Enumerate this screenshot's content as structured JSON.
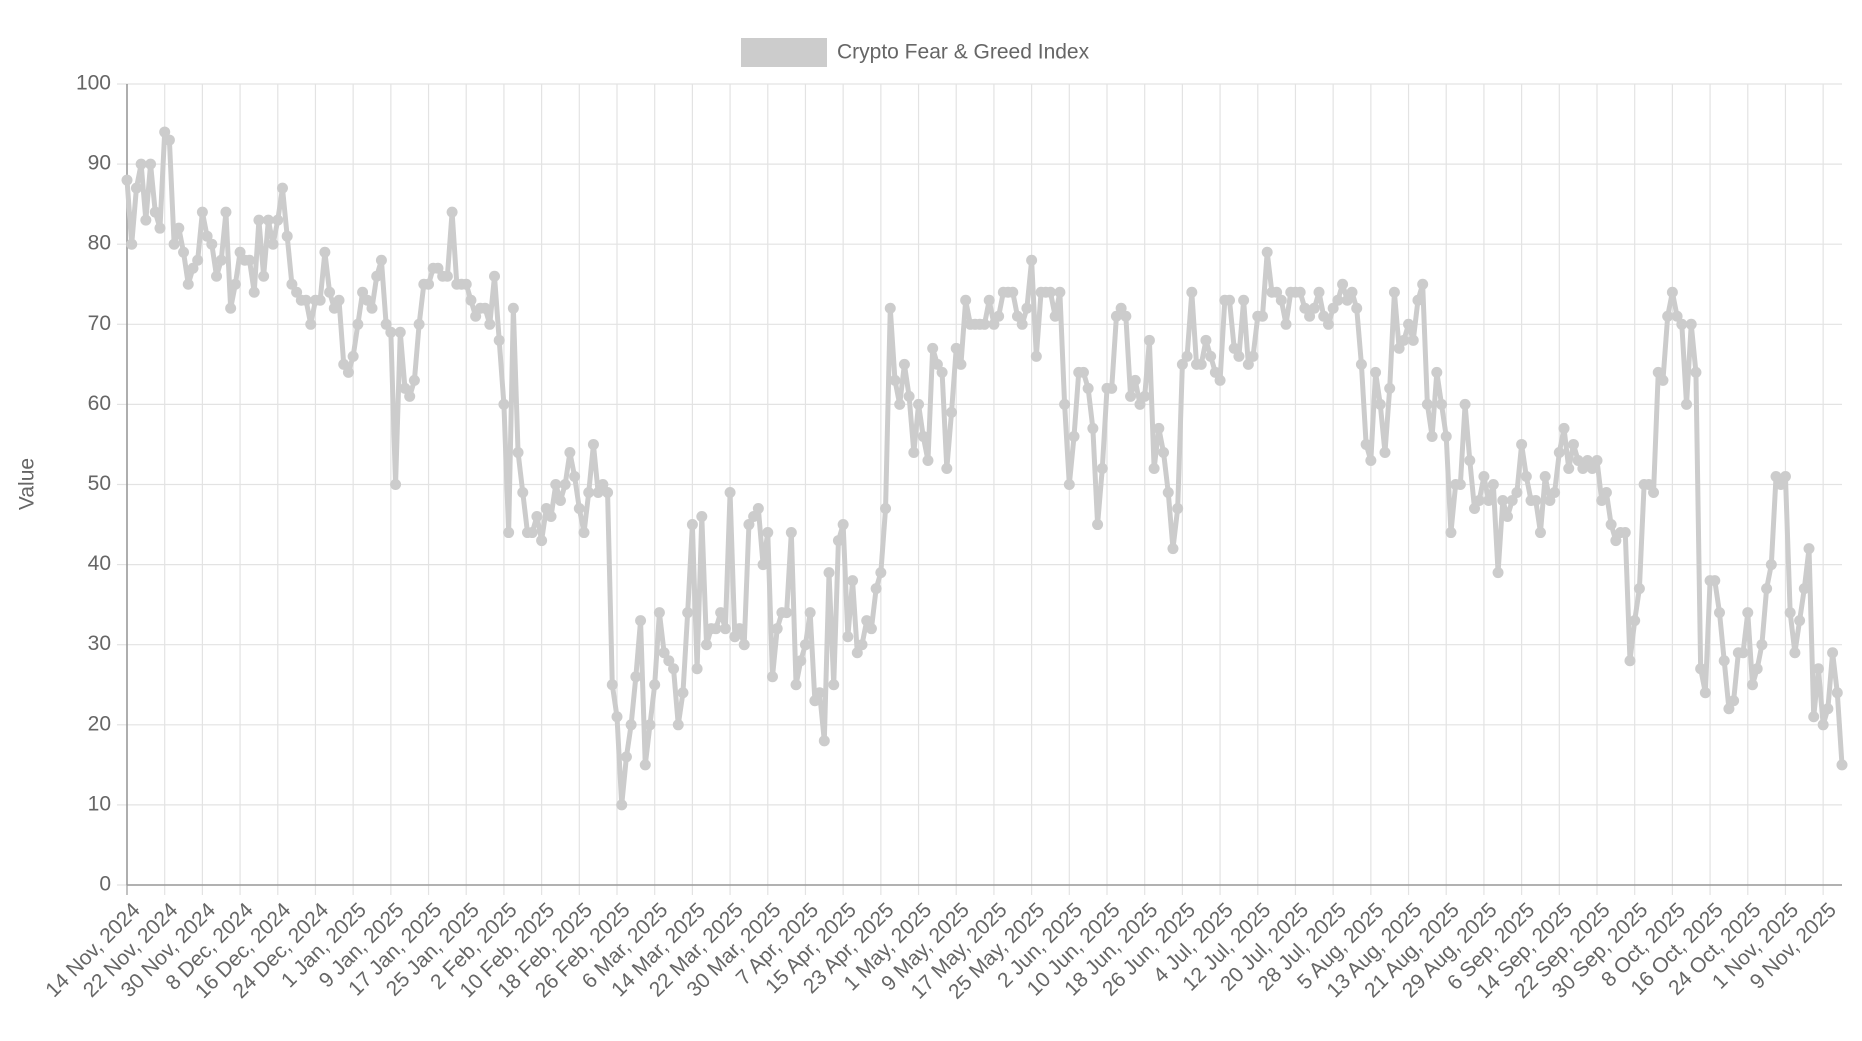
{
  "chart_data": {
    "type": "line",
    "y_label": "Value",
    "legend": "top",
    "grid": true,
    "ylim": [
      0,
      100
    ],
    "yticks": [
      0,
      10,
      20,
      30,
      40,
      50,
      60,
      70,
      80,
      90,
      100
    ],
    "categories": [
      "14 Nov, 2024",
      null,
      null,
      null,
      null,
      null,
      null,
      null,
      "22 Nov, 2024",
      null,
      null,
      null,
      null,
      null,
      null,
      null,
      "30 Nov, 2024",
      null,
      null,
      null,
      null,
      null,
      null,
      null,
      "8 Dec, 2024",
      null,
      null,
      null,
      null,
      null,
      null,
      null,
      "16 Dec, 2024",
      null,
      null,
      null,
      null,
      null,
      null,
      null,
      "24 Dec, 2024",
      null,
      null,
      null,
      null,
      null,
      null,
      null,
      "1 Jan, 2025",
      null,
      null,
      null,
      null,
      null,
      null,
      null,
      "9 Jan, 2025",
      null,
      null,
      null,
      null,
      null,
      null,
      null,
      "17 Jan, 2025",
      null,
      null,
      null,
      null,
      null,
      null,
      null,
      "25 Jan, 2025",
      null,
      null,
      null,
      null,
      null,
      null,
      null,
      "2 Feb, 2025",
      null,
      null,
      null,
      null,
      null,
      null,
      null,
      "10 Feb, 2025",
      null,
      null,
      null,
      null,
      null,
      null,
      null,
      "18 Feb, 2025",
      null,
      null,
      null,
      null,
      null,
      null,
      null,
      "26 Feb, 2025",
      null,
      null,
      null,
      null,
      null,
      null,
      null,
      "6 Mar, 2025",
      null,
      null,
      null,
      null,
      null,
      null,
      null,
      "14 Mar, 2025",
      null,
      null,
      null,
      null,
      null,
      null,
      null,
      "22 Mar, 2025",
      null,
      null,
      null,
      null,
      null,
      null,
      null,
      "30 Mar, 2025",
      null,
      null,
      null,
      null,
      null,
      null,
      null,
      "7 Apr, 2025",
      null,
      null,
      null,
      null,
      null,
      null,
      null,
      "15 Apr, 2025",
      null,
      null,
      null,
      null,
      null,
      null,
      null,
      "23 Apr, 2025",
      null,
      null,
      null,
      null,
      null,
      null,
      null,
      "1 May, 2025",
      null,
      null,
      null,
      null,
      null,
      null,
      null,
      "9 May, 2025",
      null,
      null,
      null,
      null,
      null,
      null,
      null,
      "17 May, 2025",
      null,
      null,
      null,
      null,
      null,
      null,
      null,
      "25 May, 2025",
      null,
      null,
      null,
      null,
      null,
      null,
      null,
      "2 Jun, 2025",
      null,
      null,
      null,
      null,
      null,
      null,
      null,
      "10 Jun, 2025",
      null,
      null,
      null,
      null,
      null,
      null,
      null,
      "18 Jun, 2025",
      null,
      null,
      null,
      null,
      null,
      null,
      null,
      "26 Jun, 2025",
      null,
      null,
      null,
      null,
      null,
      null,
      null,
      "4 Jul, 2025",
      null,
      null,
      null,
      null,
      null,
      null,
      null,
      "12 Jul, 2025",
      null,
      null,
      null,
      null,
      null,
      null,
      null,
      "20 Jul, 2025",
      null,
      null,
      null,
      null,
      null,
      null,
      null,
      "28 Jul, 2025",
      null,
      null,
      null,
      null,
      null,
      null,
      null,
      "5 Aug, 2025",
      null,
      null,
      null,
      null,
      null,
      null,
      null,
      "13 Aug, 2025",
      null,
      null,
      null,
      null,
      null,
      null,
      null,
      "21 Aug, 2025",
      null,
      null,
      null,
      null,
      null,
      null,
      null,
      "29 Aug, 2025",
      null,
      null,
      null,
      null,
      null,
      null,
      null,
      "6 Sep, 2025",
      null,
      null,
      null,
      null,
      null,
      null,
      null,
      "14 Sep, 2025",
      null,
      null,
      null,
      null,
      null,
      null,
      null,
      "22 Sep, 2025",
      null,
      null,
      null,
      null,
      null,
      null,
      null,
      "30 Sep, 2025",
      null,
      null,
      null,
      null,
      null,
      null,
      null,
      "8 Oct, 2025",
      null,
      null,
      null,
      null,
      null,
      null,
      null,
      "16 Oct, 2025",
      null,
      null,
      null,
      null,
      null,
      null,
      null,
      "24 Oct, 2025",
      null,
      null,
      null,
      null,
      null,
      null,
      null,
      "1 Nov, 2025",
      null,
      null,
      null,
      null,
      null,
      null,
      null,
      "9 Nov, 2025",
      null,
      null,
      null,
      null
    ],
    "series": [
      {
        "name": "Crypto Fear & Greed Index",
        "color": "#cccccc",
        "values": [
          88,
          80,
          87,
          90,
          83,
          90,
          84,
          82,
          94,
          93,
          80,
          82,
          79,
          75,
          77,
          78,
          84,
          81,
          80,
          76,
          78,
          84,
          72,
          75,
          79,
          78,
          78,
          74,
          83,
          76,
          83,
          80,
          83,
          87,
          81,
          75,
          74,
          73,
          73,
          70,
          73,
          73,
          79,
          74,
          72,
          73,
          65,
          64,
          66,
          70,
          74,
          73,
          72,
          76,
          78,
          70,
          69,
          50,
          69,
          62,
          61,
          63,
          70,
          75,
          75,
          77,
          77,
          76,
          76,
          84,
          75,
          75,
          75,
          73,
          71,
          72,
          72,
          70,
          76,
          68,
          60,
          44,
          72,
          54,
          49,
          44,
          44,
          46,
          43,
          47,
          46,
          50,
          48,
          50,
          54,
          51,
          47,
          44,
          49,
          55,
          49,
          50,
          49,
          25,
          21,
          10,
          16,
          20,
          26,
          33,
          15,
          20,
          25,
          34,
          29,
          28,
          27,
          20,
          24,
          34,
          45,
          27,
          46,
          30,
          32,
          32,
          34,
          32,
          49,
          31,
          32,
          30,
          45,
          46,
          47,
          40,
          44,
          26,
          32,
          34,
          34,
          44,
          25,
          28,
          30,
          34,
          23,
          24,
          18,
          39,
          25,
          43,
          45,
          31,
          38,
          29,
          30,
          33,
          32,
          37,
          39,
          47,
          72,
          63,
          60,
          65,
          61,
          54,
          60,
          56,
          53,
          67,
          65,
          64,
          52,
          59,
          67,
          65,
          73,
          70,
          70,
          70,
          70,
          73,
          70,
          71,
          74,
          74,
          74,
          71,
          70,
          72,
          78,
          66,
          74,
          74,
          74,
          71,
          74,
          60,
          50,
          56,
          64,
          64,
          62,
          57,
          45,
          52,
          62,
          62,
          71,
          72,
          71,
          61,
          63,
          60,
          61,
          68,
          52,
          57,
          54,
          49,
          42,
          47,
          65,
          66,
          74,
          65,
          65,
          68,
          66,
          64,
          63,
          73,
          73,
          67,
          66,
          73,
          65,
          66,
          71,
          71,
          79,
          74,
          74,
          73,
          70,
          74,
          74,
          74,
          72,
          71,
          72,
          74,
          71,
          70,
          72,
          73,
          75,
          73,
          74,
          72,
          65,
          55,
          53,
          64,
          60,
          54,
          62,
          74,
          67,
          68,
          70,
          68,
          73,
          75,
          60,
          56,
          64,
          60,
          56,
          44,
          50,
          50,
          60,
          53,
          47,
          48,
          51,
          48,
          50,
          39,
          48,
          46,
          48,
          49,
          55,
          51,
          48,
          48,
          44,
          51,
          48,
          49,
          54,
          57,
          52,
          55,
          53,
          52,
          53,
          52,
          53,
          48,
          49,
          45,
          43,
          44,
          44,
          28,
          33,
          37,
          50,
          50,
          49,
          64,
          63,
          71,
          74,
          71,
          70,
          60,
          70,
          64,
          27,
          24,
          38,
          38,
          34,
          28,
          22,
          23,
          29,
          29,
          34,
          25,
          27,
          30,
          37,
          40,
          51,
          50,
          51,
          34,
          29,
          33,
          37,
          42,
          21,
          27,
          20,
          22,
          29,
          24,
          15
        ]
      }
    ]
  }
}
